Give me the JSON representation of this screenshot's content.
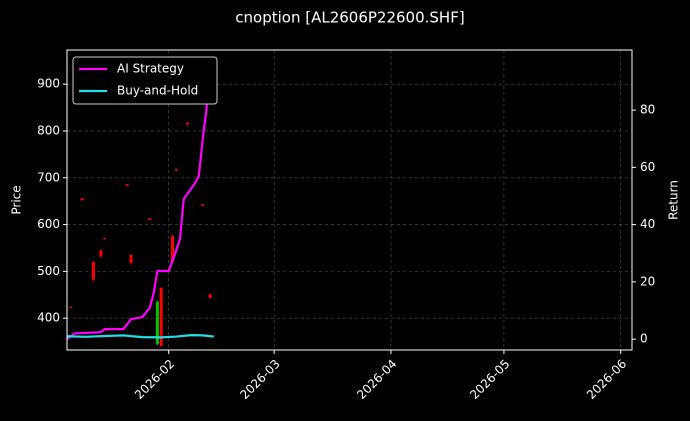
{
  "chart_data": {
    "type": "candlestick",
    "title": "cnoption [AL2606P22600.SHF]",
    "ylabel": "Price",
    "y2label": "Return",
    "xlim": [
      "2026-01-05",
      "2026-06-04"
    ],
    "xticks": [
      {
        "value": "2026-02-01",
        "label": "2026-02"
      },
      {
        "value": "2026-03-01",
        "label": "2026-03"
      },
      {
        "value": "2026-04-01",
        "label": "2026-04"
      },
      {
        "value": "2026-05-01",
        "label": "2026-05"
      },
      {
        "value": "2026-06-01",
        "label": "2026-06"
      }
    ],
    "ylim": [
      332,
      973
    ],
    "yticks": [
      400,
      500,
      600,
      700,
      800,
      900
    ],
    "y2lim": [
      -3.8,
      101
    ],
    "y2ticks": [
      0,
      20,
      40,
      60,
      80
    ],
    "grid": true,
    "legend": "upper left",
    "up_color": "#00c800",
    "down_color": "#ff0000",
    "candles": {
      "x": [
        "2026-01-06",
        "2026-01-09",
        "2026-01-12",
        "2026-01-14",
        "2026-01-15",
        "2026-01-21",
        "2026-01-22",
        "2026-01-27",
        "2026-01-29",
        "2026-01-30",
        "2026-02-02",
        "2026-02-03",
        "2026-02-06",
        "2026-02-10",
        "2026-02-12"
      ],
      "open": [
        424,
        656,
        520,
        545,
        571,
        686,
        535,
        613,
        345,
        465,
        575,
        718,
        817,
        643,
        451
      ],
      "high": [
        425,
        657,
        522,
        546,
        572,
        687,
        537,
        614,
        437,
        466,
        578,
        720,
        819,
        644,
        452
      ],
      "low": [
        421,
        651,
        480,
        530,
        568,
        682,
        515,
        609,
        342,
        340,
        520,
        714,
        813,
        639,
        442
      ],
      "close": [
        422,
        652,
        482,
        532,
        569,
        683,
        518,
        610,
        435,
        340,
        520,
        715,
        814,
        640,
        443
      ]
    },
    "series": [
      {
        "name": "AI Strategy",
        "color": "#ff00ff",
        "axis": "y2",
        "x": [
          "2026-01-05",
          "2026-01-07",
          "2026-01-14",
          "2026-01-15",
          "2026-01-20",
          "2026-01-22",
          "2026-01-25",
          "2026-01-27",
          "2026-01-28",
          "2026-01-29",
          "2026-02-01",
          "2026-02-03",
          "2026-02-04",
          "2026-02-05",
          "2026-02-08",
          "2026-02-09",
          "2026-02-10",
          "2026-02-11",
          "2026-02-12"
        ],
        "values": [
          0,
          2,
          2.4,
          3.5,
          3.5,
          7,
          7.7,
          11,
          16,
          23.8,
          23.8,
          31,
          35,
          49,
          54.5,
          57,
          69.5,
          80,
          96
        ]
      },
      {
        "name": "Buy-and-Hold",
        "color": "#22dde6",
        "axis": "y2",
        "x": [
          "2026-01-05",
          "2026-01-10",
          "2026-01-15",
          "2026-01-20",
          "2026-01-25",
          "2026-01-30",
          "2026-02-03",
          "2026-02-07",
          "2026-02-10",
          "2026-02-13"
        ],
        "values": [
          1,
          0.8,
          1.1,
          1.3,
          0.7,
          0.6,
          0.9,
          1.4,
          1.3,
          0.9
        ]
      }
    ]
  }
}
